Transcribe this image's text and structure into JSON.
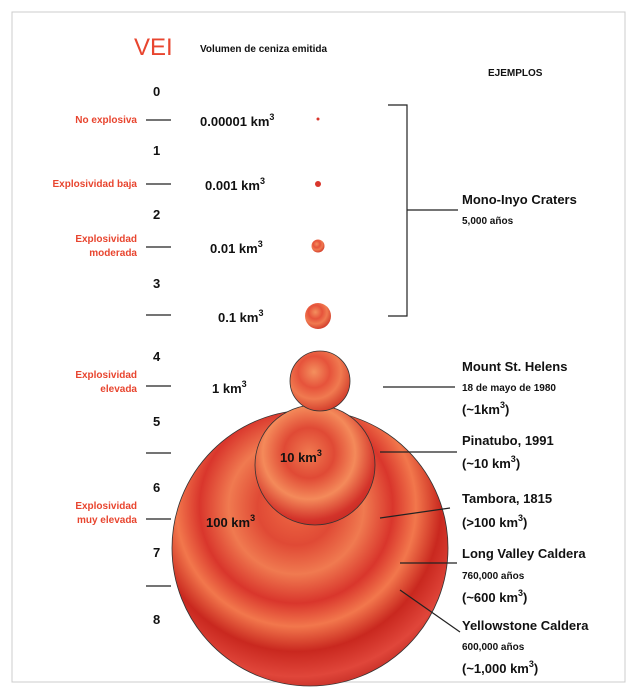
{
  "header": {
    "title": "VEI",
    "subtitle": "Volumen de ceniza emitida",
    "examples_heading": "EJEMPLOS"
  },
  "levels": [
    0,
    1,
    2,
    3,
    4,
    5,
    6,
    7,
    8
  ],
  "categories": [
    {
      "lines": [
        "No explosiva"
      ]
    },
    {
      "lines": [
        "Explosividad baja"
      ]
    },
    {
      "lines": [
        "Explosividad",
        "moderada"
      ]
    },
    {
      "lines": [
        "Explosividad",
        "elevada"
      ]
    },
    {
      "lines": [
        "Explosividad",
        "muy elevada"
      ]
    }
  ],
  "volumes": [
    {
      "text": "0.00001 km",
      "sup": "3"
    },
    {
      "text": "0.001 km",
      "sup": "3"
    },
    {
      "text": "0.01 km",
      "sup": "3"
    },
    {
      "text": "0.1 km",
      "sup": "3"
    },
    {
      "text": "1 km",
      "sup": "3"
    },
    {
      "text": "10 km",
      "sup": "3"
    },
    {
      "text": "100 km",
      "sup": "3"
    }
  ],
  "examples": [
    {
      "lines": [
        "Mono-Inyo Craters",
        "5,000 años"
      ]
    },
    {
      "lines": [
        "Mount St. Helens",
        "18 de mayo de 1980"
      ],
      "amount": {
        "before": "(~1km",
        "sup": "3",
        "after": ")"
      }
    },
    {
      "lines": [
        "Pinatubo, 1991"
      ],
      "amount": {
        "before": "(~10 km",
        "sup": "3",
        "after": ")"
      }
    },
    {
      "lines": [
        "Tambora, 1815"
      ],
      "amount": {
        "before": "(>100 km",
        "sup": "3",
        "after": ")"
      }
    },
    {
      "lines": [
        "Long Valley Caldera",
        "760,000 años"
      ],
      "amount": {
        "before": "(~600 km",
        "sup": "3",
        "after": ")"
      }
    },
    {
      "lines": [
        "Yellowstone Caldera",
        "600,000 años"
      ],
      "amount": {
        "before": "(~1,000 km",
        "sup": "3",
        "after": ")"
      }
    }
  ]
}
